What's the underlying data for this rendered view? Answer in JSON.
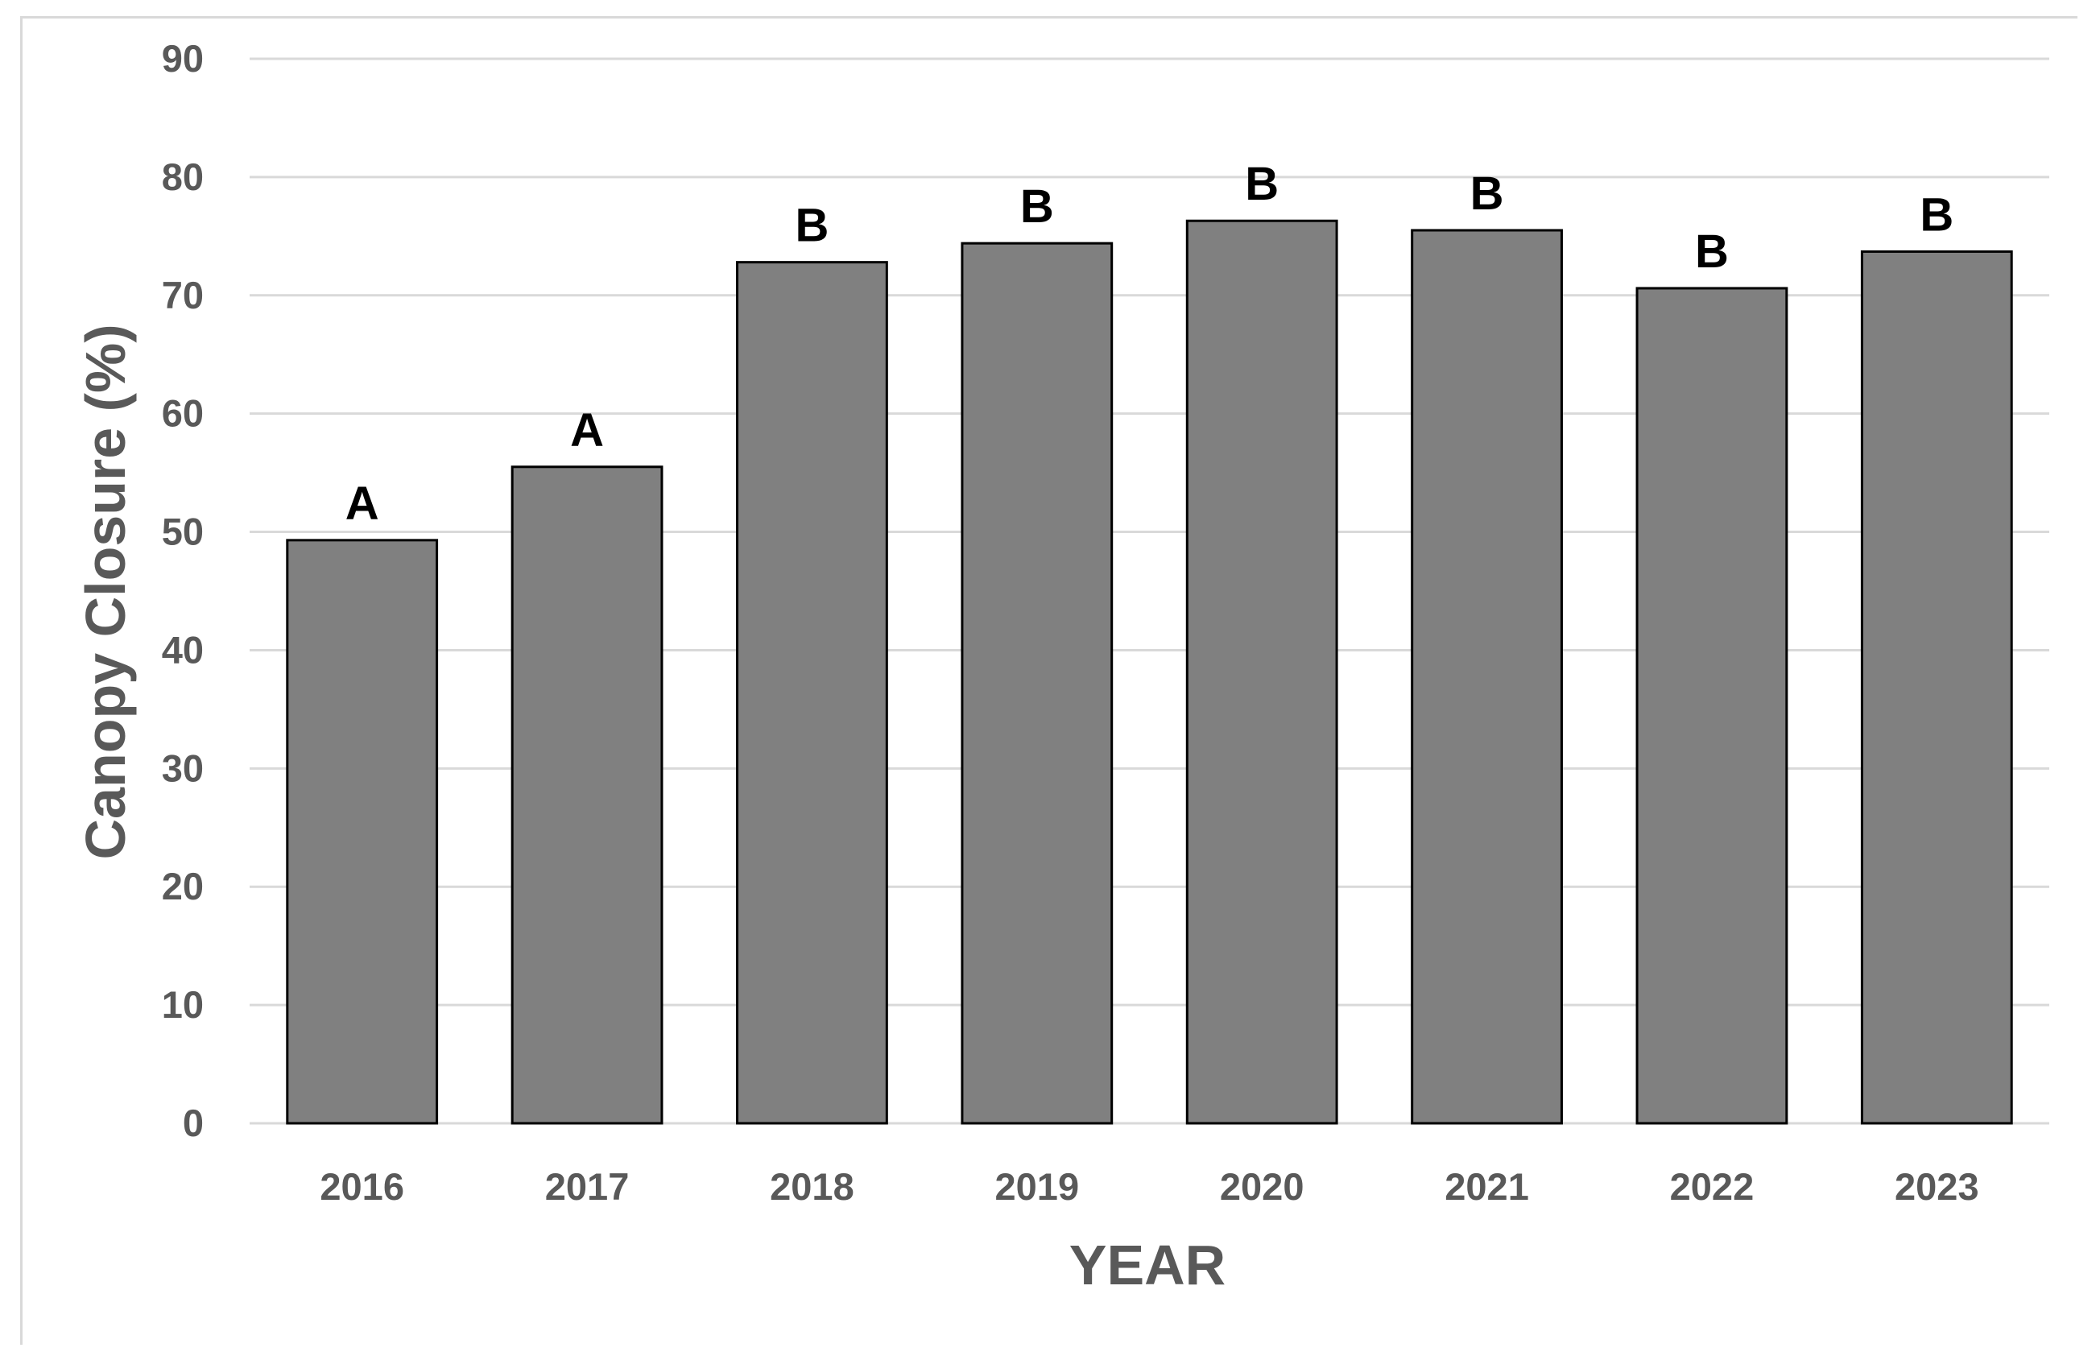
{
  "chart_data": {
    "type": "bar",
    "title": "",
    "xlabel": "YEAR",
    "ylabel": "Canopy Closure (%)",
    "categories": [
      "2016",
      "2017",
      "2018",
      "2019",
      "2020",
      "2021",
      "2022",
      "2023"
    ],
    "values": [
      49.3,
      55.5,
      72.8,
      74.4,
      76.3,
      75.5,
      70.6,
      73.7
    ],
    "data_labels": [
      "A",
      "A",
      "B",
      "B",
      "B",
      "B",
      "B",
      "B"
    ],
    "ylim": [
      0,
      90
    ],
    "yticks": [
      "0",
      "10",
      "20",
      "30",
      "40",
      "50",
      "60",
      "70",
      "80",
      "90"
    ],
    "grid": true,
    "legend": "none",
    "colors": {
      "bar_fill": "#808080",
      "bar_stroke": "#000000",
      "grid": "#d9d9d9",
      "axis_text": "#595959"
    }
  }
}
